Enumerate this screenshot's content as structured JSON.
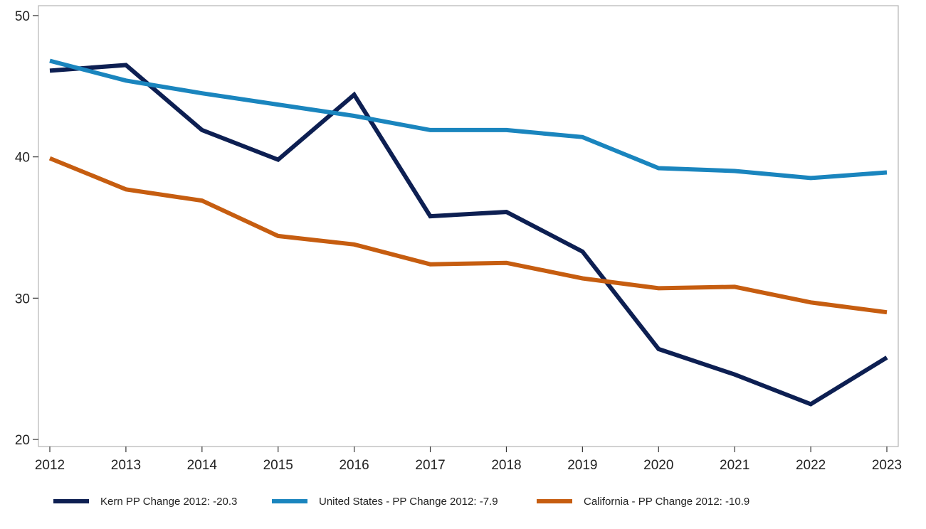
{
  "chart_data": {
    "type": "line",
    "title": "",
    "xlabel": "",
    "ylabel": "",
    "x": [
      "2012",
      "2013",
      "2014",
      "2015",
      "2016",
      "2017",
      "2018",
      "2019",
      "2020",
      "2021",
      "2022",
      "2023"
    ],
    "ylim": [
      19.5,
      50.7
    ],
    "yticks": [
      "20",
      "30",
      "40",
      "50"
    ],
    "grid": false,
    "legend_position": "bottom",
    "series": [
      {
        "name": "Kern PP Change 2012: -20.3",
        "color": "#0d1f52",
        "values": [
          46.1,
          46.5,
          41.9,
          39.8,
          44.4,
          35.8,
          36.1,
          33.3,
          26.4,
          24.6,
          22.5,
          25.8
        ]
      },
      {
        "name": "United States - PP Change 2012: -7.9",
        "color": "#1a85be",
        "values": [
          46.8,
          45.4,
          44.5,
          43.7,
          42.9,
          41.9,
          41.9,
          41.4,
          39.2,
          39.0,
          38.5,
          38.9
        ]
      },
      {
        "name": "California - PP Change 2012: -10.9",
        "color": "#c65d10",
        "values": [
          39.9,
          37.7,
          36.9,
          34.4,
          33.8,
          32.4,
          32.5,
          31.4,
          30.7,
          30.8,
          29.7,
          29.0
        ]
      }
    ]
  }
}
